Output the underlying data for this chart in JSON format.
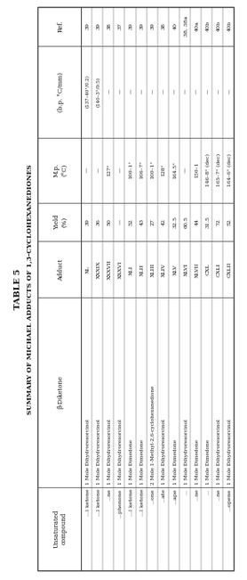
{
  "title": "TABLE 5",
  "subtitle": "SUMMARY OF MICHAEL ADDUCTS OF 1,3-CYCLOHEXANEDIONES",
  "col_headers": [
    "Unsaturated\ncompound",
    "β-Diketone",
    "Adduct",
    "Yield\n(%)",
    "M.p.\n(°C)",
    "(b.p. °C/mm)",
    "Ref."
  ],
  "rows": [
    [
      "...l ketone",
      "1 Mole Dihydroresorcinol",
      "XL",
      "39",
      "—",
      "(137–40°/0.2)",
      "39"
    ],
    [
      "...l ketone",
      "1 Mole Dihydroresorcinol",
      "XXXIX",
      "36",
      "—",
      "(140–3°/0.5)",
      "39"
    ],
    [
      "...ne",
      "1 Mole Dihydroresorcinol",
      "XXXVII",
      "50",
      "127°",
      "—",
      "38"
    ],
    [
      "...phenone",
      "1 Mole Dihydroresorcinol",
      "XXXVI",
      "—",
      "—",
      "—",
      "37"
    ],
    [
      "...l ketone",
      "1 Mole Dimedone",
      "XLI",
      "52",
      "100–1°",
      "—",
      "39"
    ],
    [
      "...l ketone",
      "1 Mole Dimedone",
      "XLII",
      "43",
      "106–7°",
      "—",
      "39"
    ],
    [
      "...one",
      "2 Mole 1-Methyl-2,6-cyclohexanedione",
      "XLIII",
      "27",
      "100–1°",
      "—",
      "39"
    ],
    [
      "...ate",
      "1 Mole Dihydroresorcinol",
      "XLIV",
      "42",
      "128°",
      "—",
      "38"
    ],
    [
      "...ape",
      "1 Mole Dimedone",
      "XLV",
      "32.5",
      "164.5°",
      "—",
      "40"
    ],
    [
      "...",
      "1 Mole Dihydroresorcinol",
      "XLVI",
      "60.5",
      "—",
      "—",
      "38, 38a"
    ],
    [
      "...ne",
      "1 Mole Dimedone",
      "XLVII",
      "44",
      "150–1",
      "—",
      "40a"
    ],
    [
      "...",
      "1 Mole Dimedone",
      "CXL",
      "31.5",
      "146–8° (dec)",
      "—",
      "40b"
    ],
    [
      "...ne",
      "1 Mole Dihydroresorcinol",
      "CXLI",
      "72",
      "165–7° (dec)",
      "—",
      "40b"
    ],
    [
      "...opene",
      "1 Mole Dihydroresorcinol",
      "CXLII",
      "52",
      "164–6° (dec)",
      "—",
      "40b"
    ]
  ],
  "line_color": "#444444",
  "text_color": "#111111",
  "bg_color": "#ffffff",
  "title_fontsize": 7,
  "subtitle_fontsize": 5.5,
  "header_fontsize": 5.0,
  "cell_fontsize": 4.5
}
